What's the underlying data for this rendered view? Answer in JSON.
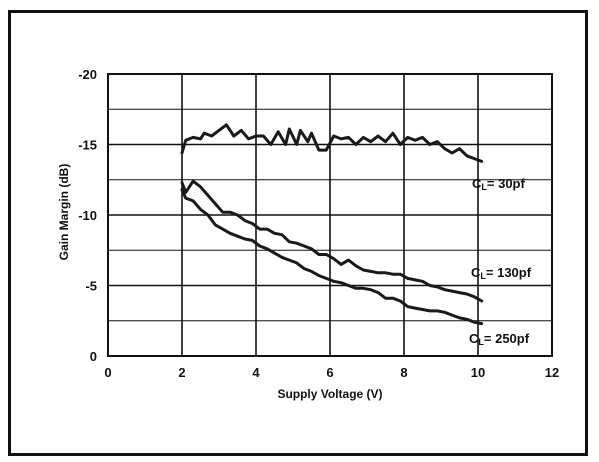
{
  "chart_data": {
    "type": "line",
    "xlabel": "Supply Voltage (V)",
    "ylabel": "Gain Margin (dB)",
    "xlim": [
      0,
      12
    ],
    "ylim": [
      0,
      -20
    ],
    "x_ticks": [
      "0",
      "2",
      "4",
      "6",
      "8",
      "10",
      "12"
    ],
    "y_ticks": [
      "0",
      "-5",
      "-10",
      "-15",
      "-20"
    ],
    "grid": true,
    "colors": {
      "line": "#1a1a1a",
      "grid": "#111111",
      "frame": "#111111"
    },
    "series": [
      {
        "name": "CL= 30pf",
        "label_main": "C",
        "label_sub": "L",
        "label_rest": "= 30pf",
        "x": [
          2.0,
          2.1,
          2.3,
          2.5,
          2.6,
          2.8,
          3.0,
          3.2,
          3.4,
          3.6,
          3.8,
          4.0,
          4.2,
          4.4,
          4.6,
          4.8,
          4.9,
          5.1,
          5.2,
          5.4,
          5.5,
          5.7,
          5.9,
          6.1,
          6.3,
          6.5,
          6.7,
          6.9,
          7.1,
          7.3,
          7.5,
          7.7,
          7.9,
          8.1,
          8.3,
          8.5,
          8.7,
          8.9,
          9.1,
          9.3,
          9.5,
          9.7,
          9.9,
          10.1
        ],
        "y": [
          -14.4,
          -15.3,
          -15.5,
          -15.4,
          -15.8,
          -15.6,
          -16.0,
          -16.4,
          -15.6,
          -16.0,
          -15.4,
          -15.6,
          -15.6,
          -15.0,
          -15.9,
          -15.0,
          -16.1,
          -15.0,
          -16.0,
          -15.2,
          -15.8,
          -14.6,
          -14.6,
          -15.6,
          -15.4,
          -15.5,
          -15.0,
          -15.5,
          -15.2,
          -15.6,
          -15.2,
          -15.8,
          -15.0,
          -15.5,
          -15.3,
          -15.5,
          -15.0,
          -15.2,
          -14.7,
          -14.4,
          -14.7,
          -14.2,
          -14.0,
          -13.8
        ]
      },
      {
        "name": "CL= 130pf",
        "label_main": "C",
        "label_sub": "L",
        "label_rest": "= 130pf",
        "x": [
          2.0,
          2.1,
          2.3,
          2.5,
          2.7,
          2.9,
          3.1,
          3.3,
          3.5,
          3.7,
          3.9,
          4.1,
          4.3,
          4.5,
          4.7,
          4.9,
          5.1,
          5.3,
          5.5,
          5.7,
          5.9,
          6.1,
          6.3,
          6.5,
          6.7,
          6.9,
          7.1,
          7.3,
          7.5,
          7.7,
          7.9,
          8.1,
          8.3,
          8.5,
          8.7,
          8.9,
          9.1,
          9.3,
          9.5,
          9.7,
          9.9,
          10.1
        ],
        "y": [
          -12.3,
          -11.6,
          -12.4,
          -12.0,
          -11.4,
          -10.8,
          -10.2,
          -10.2,
          -10.0,
          -9.6,
          -9.4,
          -9.0,
          -9.0,
          -8.7,
          -8.6,
          -8.1,
          -8.0,
          -7.8,
          -7.6,
          -7.2,
          -7.2,
          -6.9,
          -6.5,
          -6.8,
          -6.4,
          -6.1,
          -6.0,
          -5.9,
          -5.9,
          -5.8,
          -5.8,
          -5.5,
          -5.4,
          -5.3,
          -5.0,
          -4.9,
          -4.7,
          -4.6,
          -4.5,
          -4.4,
          -4.2,
          -3.9
        ]
      },
      {
        "name": "CL= 250pf",
        "label_main": "C",
        "label_sub": "L",
        "label_rest": "= 250pf",
        "x": [
          2.0,
          2.1,
          2.3,
          2.5,
          2.7,
          2.9,
          3.1,
          3.3,
          3.5,
          3.7,
          3.9,
          4.1,
          4.3,
          4.5,
          4.7,
          4.9,
          5.1,
          5.3,
          5.5,
          5.7,
          5.9,
          6.1,
          6.3,
          6.5,
          6.7,
          6.9,
          7.1,
          7.3,
          7.5,
          7.7,
          7.9,
          8.1,
          8.3,
          8.5,
          8.7,
          8.9,
          9.1,
          9.3,
          9.5,
          9.7,
          9.9,
          10.1
        ],
        "y": [
          -11.8,
          -11.2,
          -11.0,
          -10.4,
          -10.0,
          -9.3,
          -9.0,
          -8.7,
          -8.5,
          -8.3,
          -8.2,
          -7.8,
          -7.6,
          -7.3,
          -7.0,
          -6.8,
          -6.6,
          -6.2,
          -6.0,
          -5.7,
          -5.5,
          -5.3,
          -5.2,
          -5.0,
          -4.8,
          -4.8,
          -4.7,
          -4.5,
          -4.1,
          -4.1,
          -3.9,
          -3.5,
          -3.4,
          -3.3,
          -3.2,
          -3.2,
          -3.1,
          -2.9,
          -2.7,
          -2.6,
          -2.4,
          -2.3
        ]
      }
    ]
  }
}
